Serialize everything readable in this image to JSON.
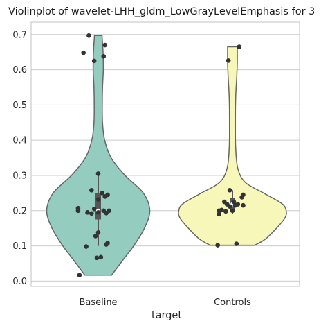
{
  "chart_data": {
    "type": "violin",
    "title": "Violinplot of wavelet-LHH_gldm_LowGrayLevelEmphasis for 3",
    "xlabel": "target",
    "ylabel": "",
    "categories": [
      "Baseline",
      "Controls"
    ],
    "ylim": [
      -0.015,
      0.735
    ],
    "yticks": [
      0.0,
      0.1,
      0.2,
      0.3,
      0.4,
      0.5,
      0.6,
      0.7
    ],
    "grid": true,
    "colors": {
      "Baseline": "#94ccc0",
      "Controls": "#f7f7b9",
      "points": "#333333",
      "outline": "#666666",
      "grid": "#cccccc"
    },
    "violins": [
      {
        "category": "Baseline",
        "range": [
          0.017,
          0.697
        ],
        "profile": [
          [
            0.017,
            0.25
          ],
          [
            0.06,
            0.46
          ],
          [
            0.1,
            0.66
          ],
          [
            0.15,
            0.86
          ],
          [
            0.2,
            0.96
          ],
          [
            0.25,
            0.84
          ],
          [
            0.3,
            0.5
          ],
          [
            0.35,
            0.24
          ],
          [
            0.4,
            0.12
          ],
          [
            0.45,
            0.08
          ],
          [
            0.5,
            0.075
          ],
          [
            0.55,
            0.08
          ],
          [
            0.6,
            0.095
          ],
          [
            0.65,
            0.09
          ],
          [
            0.697,
            0.07
          ]
        ],
        "box": {
          "q1": 0.175,
          "median": 0.2,
          "q3": 0.25,
          "whisker_low": 0.1,
          "whisker_high": 0.305
        },
        "points": [
          [
            -0.07,
            0.697
          ],
          [
            -0.11,
            0.648
          ],
          [
            0.05,
            0.67
          ],
          [
            0.04,
            0.638
          ],
          [
            -0.03,
            0.625
          ],
          [
            0.0,
            0.305
          ],
          [
            -0.05,
            0.258
          ],
          [
            0.03,
            0.25
          ],
          [
            0.07,
            0.245
          ],
          [
            0.05,
            0.24
          ],
          [
            0.0,
            0.232
          ],
          [
            -0.15,
            0.207
          ],
          [
            -0.15,
            0.2
          ],
          [
            -0.03,
            0.205
          ],
          [
            0.04,
            0.2
          ],
          [
            0.08,
            0.2
          ],
          [
            -0.08,
            0.195
          ],
          [
            0.0,
            0.195
          ],
          [
            -0.05,
            0.192
          ],
          [
            0.06,
            0.193
          ],
          [
            0.0,
            0.138
          ],
          [
            -0.02,
            0.128
          ],
          [
            0.07,
            0.108
          ],
          [
            0.06,
            0.104
          ],
          [
            -0.09,
            0.098
          ],
          [
            0.02,
            0.068
          ],
          [
            -0.01,
            0.066
          ],
          [
            -0.14,
            0.017
          ]
        ]
      },
      {
        "category": "Controls",
        "range": [
          0.102,
          0.665
        ],
        "profile": [
          [
            0.102,
            0.42
          ],
          [
            0.12,
            0.62
          ],
          [
            0.15,
            0.82
          ],
          [
            0.18,
            0.98
          ],
          [
            0.2,
            1.0
          ],
          [
            0.22,
            0.92
          ],
          [
            0.25,
            0.58
          ],
          [
            0.28,
            0.24
          ],
          [
            0.32,
            0.1
          ],
          [
            0.38,
            0.06
          ],
          [
            0.45,
            0.055
          ],
          [
            0.52,
            0.06
          ],
          [
            0.58,
            0.08
          ],
          [
            0.62,
            0.09
          ],
          [
            0.665,
            0.09
          ]
        ],
        "box": {
          "q1": 0.2,
          "median": 0.218,
          "q3": 0.235,
          "whisker_low": 0.19,
          "whisker_high": 0.258
        },
        "points": [
          [
            0.05,
            0.665
          ],
          [
            -0.03,
            0.626
          ],
          [
            -0.02,
            0.258
          ],
          [
            0.08,
            0.245
          ],
          [
            0.07,
            0.238
          ],
          [
            -0.06,
            0.225
          ],
          [
            0.01,
            0.225
          ],
          [
            -0.04,
            0.218
          ],
          [
            0.04,
            0.218
          ],
          [
            0.08,
            0.215
          ],
          [
            0.02,
            0.215
          ],
          [
            -0.02,
            0.212
          ],
          [
            -0.08,
            0.202
          ],
          [
            -0.05,
            0.198
          ],
          [
            0.0,
            0.2
          ],
          [
            -0.1,
            0.2
          ],
          [
            -0.1,
            0.19
          ],
          [
            0.03,
            0.106
          ],
          [
            -0.11,
            0.102
          ]
        ]
      }
    ]
  }
}
